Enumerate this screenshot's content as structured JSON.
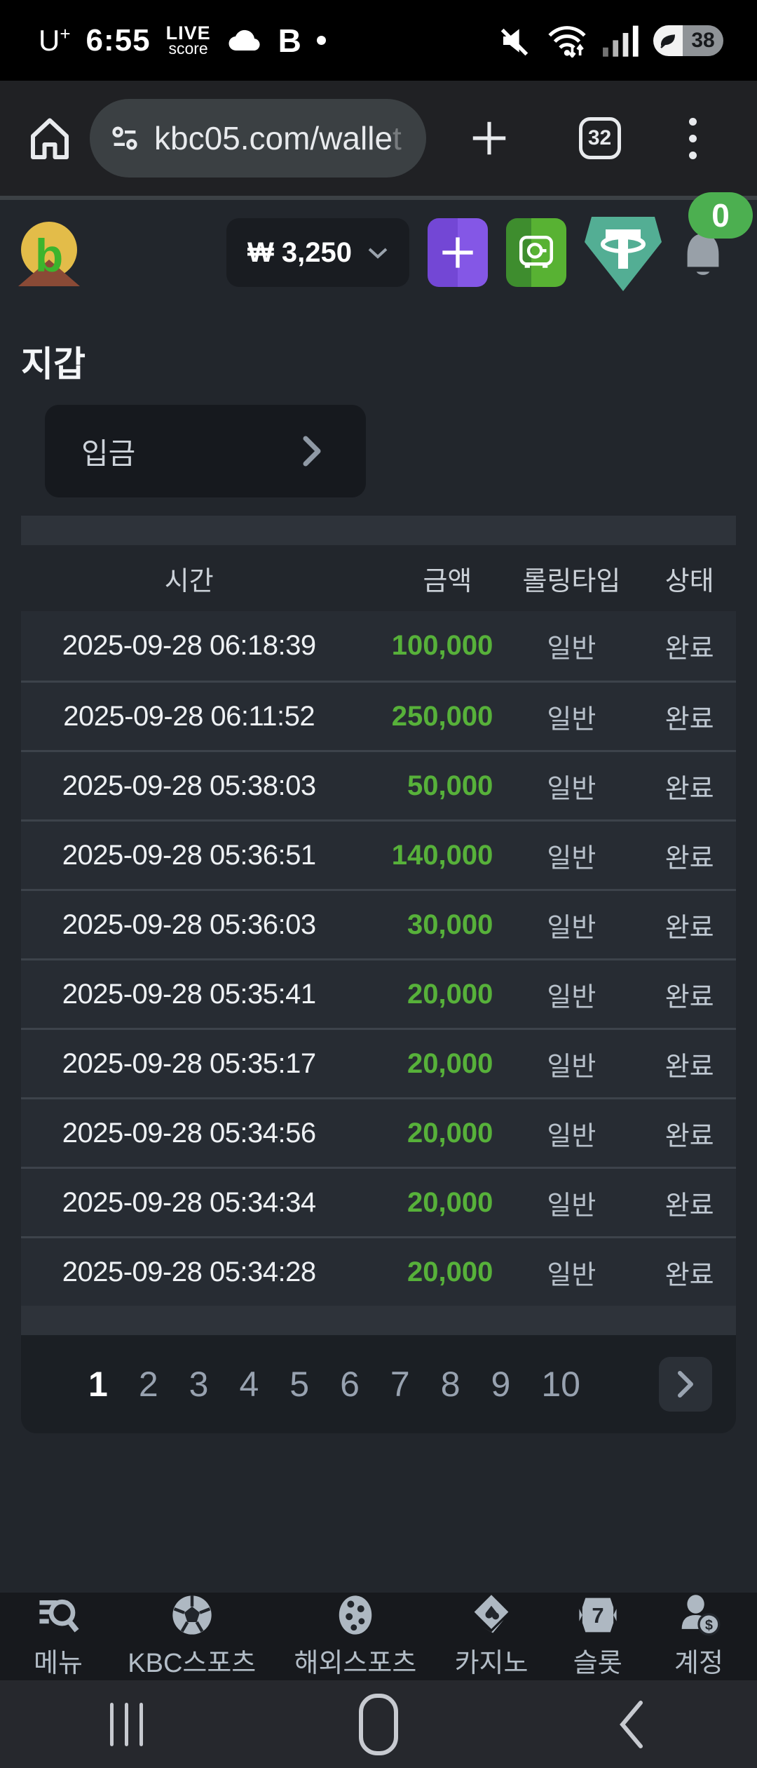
{
  "colors": {
    "accent_green": "#57b13a",
    "badge_green": "#4caf50",
    "purple_button": "#7a4fe0",
    "green_button": "#58b233",
    "tether_teal": "#53ae94"
  },
  "status_bar": {
    "carrier": "U",
    "carrier_sup": "+",
    "time": "6:55",
    "live_line1": "LIVE",
    "live_line2": "score",
    "b_icon": "B",
    "battery_percent": "38"
  },
  "browser": {
    "url": "kbc05.com/walle",
    "url_fade": "t",
    "tab_count": "32"
  },
  "site_header": {
    "balance": "₩ 3,250",
    "notification_badge": "0"
  },
  "wallet": {
    "title": "지갑",
    "deposit_label": "입금"
  },
  "table": {
    "headers": {
      "time": "시간",
      "amount": "금액",
      "rolling": "롤링타입",
      "status": "상태"
    },
    "rows": [
      {
        "time": "2025-09-28 06:18:39",
        "amount": "100,000",
        "rolling": "일반",
        "status": "완료"
      },
      {
        "time": "2025-09-28 06:11:52",
        "amount": "250,000",
        "rolling": "일반",
        "status": "완료"
      },
      {
        "time": "2025-09-28 05:38:03",
        "amount": "50,000",
        "rolling": "일반",
        "status": "완료"
      },
      {
        "time": "2025-09-28 05:36:51",
        "amount": "140,000",
        "rolling": "일반",
        "status": "완료"
      },
      {
        "time": "2025-09-28 05:36:03",
        "amount": "30,000",
        "rolling": "일반",
        "status": "완료"
      },
      {
        "time": "2025-09-28 05:35:41",
        "amount": "20,000",
        "rolling": "일반",
        "status": "완료"
      },
      {
        "time": "2025-09-28 05:35:17",
        "amount": "20,000",
        "rolling": "일반",
        "status": "완료"
      },
      {
        "time": "2025-09-28 05:34:56",
        "amount": "20,000",
        "rolling": "일반",
        "status": "완료"
      },
      {
        "time": "2025-09-28 05:34:34",
        "amount": "20,000",
        "rolling": "일반",
        "status": "완료"
      },
      {
        "time": "2025-09-28 05:34:28",
        "amount": "20,000",
        "rolling": "일반",
        "status": "완료"
      }
    ]
  },
  "pagination": {
    "pages": [
      "1",
      "2",
      "3",
      "4",
      "5",
      "6",
      "7",
      "8",
      "9",
      "10"
    ],
    "current": "1"
  },
  "bottom_nav": {
    "items": [
      {
        "label": "메뉴"
      },
      {
        "label": "KBC스포츠"
      },
      {
        "label": "해외스포츠"
      },
      {
        "label": "카지노"
      },
      {
        "label": "슬롯"
      },
      {
        "label": "계정"
      }
    ]
  }
}
